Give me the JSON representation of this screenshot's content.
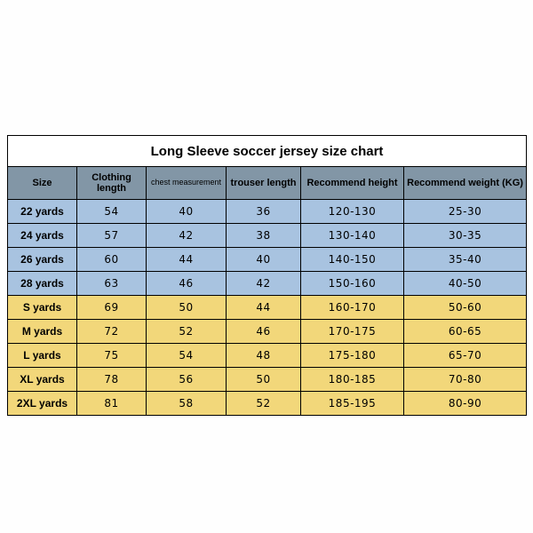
{
  "title": "Long Sleeve soccer jersey size chart",
  "columns": [
    "Size",
    "Clothing length",
    "chest measurement",
    "trouser length",
    "Recommend height",
    "Recommend weight (KG)"
  ],
  "rows": [
    {
      "band": "blue",
      "cells": [
        "22 yards",
        "54",
        "40",
        "36",
        "120-130",
        "25-30"
      ]
    },
    {
      "band": "blue",
      "cells": [
        "24 yards",
        "57",
        "42",
        "38",
        "130-140",
        "30-35"
      ]
    },
    {
      "band": "blue",
      "cells": [
        "26 yards",
        "60",
        "44",
        "40",
        "140-150",
        "35-40"
      ]
    },
    {
      "band": "blue",
      "cells": [
        "28 yards",
        "63",
        "46",
        "42",
        "150-160",
        "40-50"
      ]
    },
    {
      "band": "yellow",
      "cells": [
        "S yards",
        "69",
        "50",
        "44",
        "160-170",
        "50-60"
      ]
    },
    {
      "band": "yellow",
      "cells": [
        "M yards",
        "72",
        "52",
        "46",
        "170-175",
        "60-65"
      ]
    },
    {
      "band": "yellow",
      "cells": [
        "L yards",
        "75",
        "54",
        "48",
        "175-180",
        "65-70"
      ]
    },
    {
      "band": "yellow",
      "cells": [
        "XL yards",
        "78",
        "56",
        "50",
        "180-185",
        "70-80"
      ]
    },
    {
      "band": "yellow",
      "cells": [
        "2XL yards",
        "81",
        "58",
        "52",
        "185-195",
        "80-90"
      ]
    }
  ],
  "colors": {
    "header_bg": "#8296a6",
    "blue_band": "#a8c3e0",
    "yellow_band": "#f2d77a",
    "border": "#000000",
    "title_bg": "#ffffff",
    "page_bg": "#fefefe"
  },
  "font_sizes": {
    "title": 15,
    "header": 11,
    "header_small": 9,
    "cell": 12
  }
}
